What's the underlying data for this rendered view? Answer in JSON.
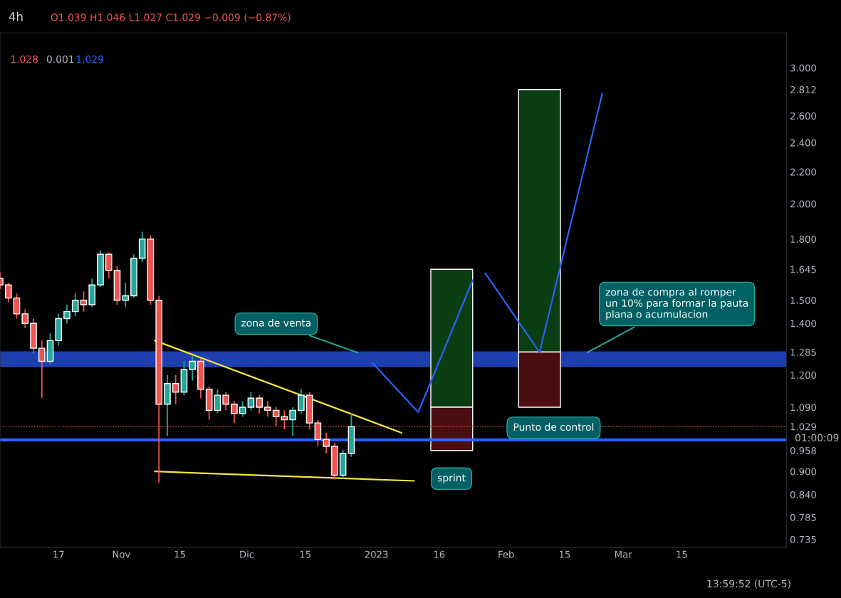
{
  "chart_data": {
    "type": "candlestick",
    "title": "4h",
    "subtitle": "O1.039 H1.046 L1.027 C1.029 −0.009 (−0.87%)",
    "x": [
      "2022-10-03",
      "2022-10-05",
      "2022-10-07",
      "2022-10-09",
      "2022-10-11",
      "2022-10-13",
      "2022-10-15",
      "2022-10-17",
      "2022-10-19",
      "2022-10-21",
      "2022-10-23",
      "2022-10-25",
      "2022-10-27",
      "2022-10-29",
      "2022-10-31",
      "2022-11-02",
      "2022-11-04",
      "2022-11-06",
      "2022-11-08",
      "2022-11-10",
      "2022-11-12",
      "2022-11-14",
      "2022-11-16",
      "2022-11-18",
      "2022-11-20",
      "2022-11-22",
      "2022-11-24",
      "2022-11-26",
      "2022-11-28",
      "2022-11-30",
      "2022-12-02",
      "2022-12-04",
      "2022-12-06",
      "2022-12-08",
      "2022-12-10",
      "2022-12-12",
      "2022-12-14",
      "2022-12-16",
      "2022-12-18",
      "2022-12-20",
      "2022-12-22",
      "2022-12-24",
      "2022-12-26"
    ],
    "ohlc": [
      [
        1.6,
        1.63,
        1.55,
        1.57
      ],
      [
        1.57,
        1.58,
        1.49,
        1.51
      ],
      [
        1.51,
        1.53,
        1.42,
        1.44
      ],
      [
        1.44,
        1.46,
        1.38,
        1.4
      ],
      [
        1.4,
        1.42,
        1.28,
        1.3
      ],
      [
        1.3,
        1.33,
        1.12,
        1.25
      ],
      [
        1.25,
        1.36,
        1.24,
        1.33
      ],
      [
        1.33,
        1.44,
        1.31,
        1.42
      ],
      [
        1.42,
        1.48,
        1.4,
        1.45
      ],
      [
        1.45,
        1.53,
        1.43,
        1.5
      ],
      [
        1.5,
        1.54,
        1.45,
        1.48
      ],
      [
        1.48,
        1.6,
        1.47,
        1.57
      ],
      [
        1.57,
        1.74,
        1.56,
        1.72
      ],
      [
        1.72,
        1.73,
        1.6,
        1.64
      ],
      [
        1.64,
        1.66,
        1.48,
        1.5
      ],
      [
        1.5,
        1.58,
        1.47,
        1.52
      ],
      [
        1.52,
        1.72,
        1.51,
        1.7
      ],
      [
        1.7,
        1.84,
        1.68,
        1.8
      ],
      [
        1.8,
        1.82,
        1.48,
        1.5
      ],
      [
        1.5,
        1.52,
        0.87,
        1.1
      ],
      [
        1.1,
        1.2,
        1.0,
        1.17
      ],
      [
        1.17,
        1.2,
        1.1,
        1.14
      ],
      [
        1.14,
        1.25,
        1.13,
        1.22
      ],
      [
        1.22,
        1.27,
        1.18,
        1.25
      ],
      [
        1.25,
        1.26,
        1.12,
        1.15
      ],
      [
        1.15,
        1.16,
        1.05,
        1.08
      ],
      [
        1.08,
        1.15,
        1.07,
        1.13
      ],
      [
        1.13,
        1.14,
        1.08,
        1.1
      ],
      [
        1.1,
        1.11,
        1.04,
        1.07
      ],
      [
        1.07,
        1.11,
        1.06,
        1.09
      ],
      [
        1.09,
        1.14,
        1.08,
        1.12
      ],
      [
        1.12,
        1.13,
        1.07,
        1.09
      ],
      [
        1.09,
        1.11,
        1.06,
        1.08
      ],
      [
        1.08,
        1.09,
        1.03,
        1.06
      ],
      [
        1.06,
        1.08,
        1.02,
        1.05
      ],
      [
        1.05,
        1.09,
        1.0,
        1.08
      ],
      [
        1.08,
        1.15,
        1.07,
        1.13
      ],
      [
        1.13,
        1.14,
        1.02,
        1.04
      ],
      [
        1.04,
        1.05,
        0.97,
        0.99
      ],
      [
        0.99,
        1.01,
        0.95,
        0.97
      ],
      [
        0.97,
        0.98,
        0.878,
        0.89
      ],
      [
        0.89,
        0.96,
        0.88,
        0.95
      ],
      [
        0.95,
        1.07,
        0.94,
        1.029
      ]
    ],
    "series": [
      {
        "type": "bar",
        "x": [
          "2023-01-19",
          "2023-02-09"
        ],
        "base": [
          1.09,
          1.285
        ],
        "values": [
          0.555,
          1.527
        ],
        "color": "#0b3d13"
      },
      {
        "type": "bar",
        "x": [
          "2023-01-19",
          "2023-02-09"
        ],
        "base": [
          0.958,
          1.09
        ],
        "values": [
          0.132,
          0.195
        ],
        "color": "#4a0d10"
      },
      {
        "type": "line",
        "x": [
          "2022-11-09",
          "2023-01-07"
        ],
        "values": [
          1.33,
          1.01
        ],
        "color": "#f5e53b"
      },
      {
        "type": "line",
        "x": [
          "2022-11-09",
          "2023-01-10"
        ],
        "values": [
          0.9,
          0.875
        ],
        "color": "#f5e53b"
      },
      {
        "type": "line",
        "x": [
          "2022-12-31",
          "2023-01-11",
          "2023-01-24"
        ],
        "values": [
          1.245,
          1.074,
          1.592
        ],
        "color": "#2962ff"
      },
      {
        "type": "line",
        "x": [
          "2023-01-27",
          "2023-02-09",
          "2023-02-24"
        ],
        "values": [
          1.626,
          1.284,
          2.78
        ],
        "color": "#2962ff"
      }
    ],
    "bands": [
      {
        "axis": "y",
        "from": 1.23,
        "to": 1.286,
        "color": "#1e3fae"
      }
    ],
    "ref_lines": [
      {
        "axis": "y",
        "value": 0.989,
        "color": "#2962ff",
        "line_style": "solid"
      },
      {
        "axis": "y",
        "value": 1.029,
        "color": "#ef5350",
        "line_style": "dotted"
      }
    ],
    "annotations": [
      {
        "text": "zona de venta",
        "x": "2022-12-28",
        "y": 1.28
      },
      {
        "text": "zona de compra al romper\nun 10% para formar la pauta\nplana o acumulacion",
        "x": "2023-02-20",
        "y": 1.28
      },
      "Punto de control",
      "sprint",
      "1.028",
      "0.001",
      "1.029",
      "01:00:09",
      "13:59:52 (UTC-5)"
    ],
    "log": true,
    "xlim": [
      "2022-10-03",
      "2023-04-09"
    ],
    "ylim": [
      0.718,
      3.33
    ],
    "xticks": [
      {
        "value": "2022-10-17",
        "label": "17"
      },
      {
        "value": "2022-11-01",
        "label": "Nov"
      },
      {
        "value": "2022-11-15",
        "label": "15"
      },
      {
        "value": "2022-12-01",
        "label": "Dic"
      },
      {
        "value": "2022-12-15",
        "label": "15"
      },
      {
        "value": "2023-01-01",
        "label": "2023"
      },
      {
        "value": "2023-01-16",
        "label": "16"
      },
      {
        "value": "2023-02-01",
        "label": "Feb"
      },
      {
        "value": "2023-02-15",
        "label": "15"
      },
      {
        "value": "2023-03-01",
        "label": "Mar"
      },
      {
        "value": "2023-03-15",
        "label": "15"
      }
    ],
    "yticks": [
      {
        "value": 0.735,
        "label": "0.735"
      },
      {
        "value": 0.785,
        "label": "0.785"
      },
      {
        "value": 0.84,
        "label": "0.840"
      },
      {
        "value": 0.9,
        "label": "0.900"
      },
      {
        "value": 0.958,
        "label": "0.958"
      },
      {
        "value": 1.029,
        "label": "1.029"
      },
      {
        "value": 1.09,
        "label": "1.090"
      },
      {
        "value": 1.2,
        "label": "1.200"
      },
      {
        "value": 1.285,
        "label": "1.285"
      },
      {
        "value": 1.4,
        "label": "1.400"
      },
      {
        "value": 1.5,
        "label": "1.500"
      },
      {
        "value": 1.645,
        "label": "1.645"
      },
      {
        "value": 1.8,
        "label": "1.800"
      },
      {
        "value": 2.0,
        "label": "2.000"
      },
      {
        "value": 2.2,
        "label": "2.200"
      },
      {
        "value": 2.4,
        "label": "2.400"
      },
      {
        "value": 2.6,
        "label": "2.600"
      },
      {
        "value": 2.812,
        "label": "2.812"
      },
      {
        "value": 3.0,
        "label": "3.000"
      }
    ]
  }
}
